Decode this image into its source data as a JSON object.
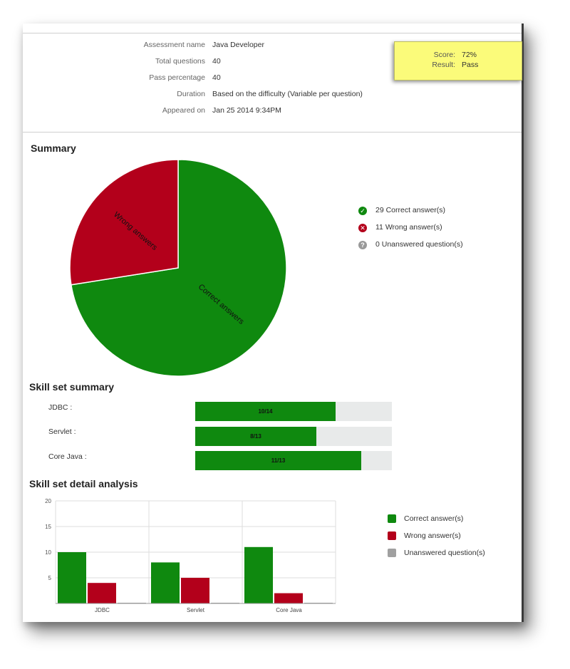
{
  "info": [
    {
      "label": "Assessment name",
      "value": "Java Developer"
    },
    {
      "label": "Total questions",
      "value": "40"
    },
    {
      "label": "Pass percentage",
      "value": "40"
    },
    {
      "label": "Duration",
      "value": "Based on the difficulty (Variable per question)"
    },
    {
      "label": "Appeared on",
      "value": "Jan 25 2014 9:34PM"
    }
  ],
  "score": {
    "score_label": "Score:",
    "score_value": "72%",
    "result_label": "Result:",
    "result_value": "Pass"
  },
  "summary": {
    "title": "Summary",
    "legend": [
      {
        "text": "29 Correct answer(s)",
        "icon": "check-circle-icon",
        "color": "#0f890f"
      },
      {
        "text": "11 Wrong answer(s)",
        "icon": "x-circle-icon",
        "color": "#b3001b"
      },
      {
        "text": "0 Unanswered question(s)",
        "icon": "question-circle-icon",
        "color": "#999999"
      }
    ]
  },
  "skills": {
    "title": "Skill set summary",
    "items": [
      {
        "label": "JDBC :",
        "text": "10/14",
        "fraction": 0.714
      },
      {
        "label": "Servlet :",
        "text": "8/13",
        "fraction": 0.615
      },
      {
        "label": "Core Java :",
        "text": "11/13",
        "fraction": 0.846
      }
    ]
  },
  "detail": {
    "title": "Skill set detail analysis",
    "legend": [
      "Correct answer(s)",
      "Wrong answer(s)",
      "Unanswered question(s)"
    ]
  },
  "colors": {
    "correct": "#0f890f",
    "wrong": "#b3001b",
    "unanswered": "#a0a0a0"
  },
  "chart_data": [
    {
      "type": "pie",
      "labels": [
        "Correct answers",
        "Wrong answers"
      ],
      "values": [
        29,
        11
      ]
    },
    {
      "type": "bar",
      "categories": [
        "JDBC",
        "Servlet",
        "Core Java"
      ],
      "series": [
        {
          "name": "Correct answer(s)",
          "values": [
            10,
            8,
            11
          ]
        },
        {
          "name": "Wrong answer(s)",
          "values": [
            4,
            5,
            2
          ]
        },
        {
          "name": "Unanswered question(s)",
          "values": [
            0,
            0,
            0
          ]
        }
      ],
      "yticks": [
        "5",
        "10",
        "15",
        "20"
      ],
      "ylim": [
        0,
        20
      ],
      "grid": true
    }
  ]
}
